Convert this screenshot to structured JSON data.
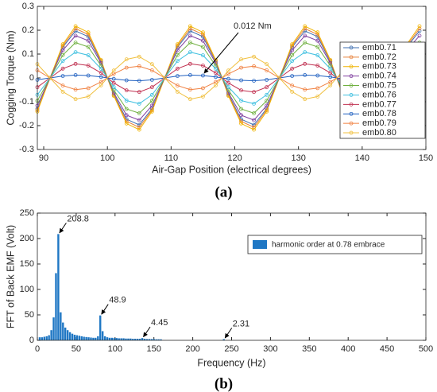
{
  "chart_data": [
    {
      "type": "line",
      "caption": "(a)",
      "xlabel": "Air-Gap Position (electrical degrees)",
      "ylabel": "Cogging Torque (Nm)",
      "annotation": "0.012 Nm",
      "xlim": [
        89,
        150
      ],
      "xticks": [
        90,
        100,
        110,
        120,
        130,
        140,
        150
      ],
      "ylim": [
        -0.3,
        0.3
      ],
      "yticks": [
        -0.3,
        -0.2,
        -0.1,
        0,
        0.1,
        0.2,
        0.3
      ],
      "x": [
        89,
        91,
        93,
        95,
        97,
        99,
        101,
        103,
        105,
        107,
        109,
        111,
        113,
        115,
        117,
        119,
        121,
        123,
        125,
        127,
        129,
        131,
        133,
        135,
        137,
        139,
        141,
        143,
        145,
        147,
        149
      ],
      "series": [
        {
          "name": "emb0.71",
          "color": "#3f6fb0",
          "values": [
            -0.129,
            0,
            0.129,
            0.197,
            0.173,
            0.068,
            -0.068,
            -0.173,
            -0.197,
            -0.129,
            0,
            0.129,
            0.197,
            0.173,
            0.068,
            -0.068,
            -0.173,
            -0.197,
            -0.129,
            0,
            0.129,
            0.197,
            0.173,
            0.068,
            -0.068,
            -0.173,
            -0.197,
            -0.129,
            0,
            0.129,
            0.197
          ]
        },
        {
          "name": "emb0.72",
          "color": "#e8803a",
          "values": [
            -0.135,
            0,
            0.135,
            0.207,
            0.182,
            0.072,
            -0.072,
            -0.182,
            -0.207,
            -0.135,
            0,
            0.135,
            0.207,
            0.182,
            0.072,
            -0.072,
            -0.182,
            -0.207,
            -0.135,
            0,
            0.135,
            0.207,
            0.182,
            0.072,
            -0.072,
            -0.182,
            -0.207,
            -0.135,
            0,
            0.135,
            0.207
          ]
        },
        {
          "name": "emb0.73",
          "color": "#f0b400",
          "values": [
            -0.141,
            0,
            0.141,
            0.217,
            0.191,
            0.075,
            -0.075,
            -0.191,
            -0.217,
            -0.141,
            0,
            0.141,
            0.217,
            0.191,
            0.075,
            -0.075,
            -0.191,
            -0.217,
            -0.141,
            0,
            0.141,
            0.217,
            0.191,
            0.075,
            -0.075,
            -0.191,
            -0.217,
            -0.141,
            0,
            0.141,
            0.217
          ]
        },
        {
          "name": "emb0.74",
          "color": "#8040a0",
          "values": [
            -0.116,
            0,
            0.116,
            0.177,
            0.156,
            0.062,
            -0.062,
            -0.156,
            -0.177,
            -0.116,
            0,
            0.116,
            0.177,
            0.156,
            0.062,
            -0.062,
            -0.156,
            -0.177,
            -0.116,
            0,
            0.116,
            0.177,
            0.156,
            0.062,
            -0.062,
            -0.156,
            -0.177,
            -0.116,
            0,
            0.116,
            0.177
          ]
        },
        {
          "name": "emb0.75",
          "color": "#70b040",
          "values": [
            -0.096,
            0,
            0.096,
            0.148,
            0.13,
            0.051,
            -0.051,
            -0.13,
            -0.148,
            -0.096,
            0,
            0.096,
            0.148,
            0.13,
            0.051,
            -0.051,
            -0.13,
            -0.148,
            -0.096,
            0,
            0.096,
            0.148,
            0.13,
            0.051,
            -0.051,
            -0.13,
            -0.148,
            -0.096,
            0,
            0.096,
            0.148
          ]
        },
        {
          "name": "emb0.76",
          "color": "#40c0e0",
          "values": [
            -0.071,
            0,
            0.071,
            0.108,
            0.095,
            0.038,
            -0.038,
            -0.095,
            -0.108,
            -0.071,
            0,
            0.071,
            0.108,
            0.095,
            0.038,
            -0.038,
            -0.095,
            -0.108,
            -0.071,
            0,
            0.071,
            0.108,
            0.095,
            0.038,
            -0.038,
            -0.095,
            -0.108,
            -0.071,
            0,
            0.071,
            0.108
          ]
        },
        {
          "name": "emb0.77",
          "color": "#c03050",
          "values": [
            -0.039,
            0,
            0.039,
            0.059,
            0.052,
            0.021,
            -0.021,
            -0.052,
            -0.059,
            -0.039,
            0,
            0.039,
            0.059,
            0.052,
            0.021,
            -0.021,
            -0.052,
            -0.059,
            -0.039,
            0,
            0.039,
            0.059,
            0.052,
            0.021,
            -0.021,
            -0.052,
            -0.059,
            -0.039,
            0,
            0.039,
            0.059
          ]
        },
        {
          "name": "emb0.78",
          "color": "#2060c0",
          "values": [
            -0.008,
            0,
            0.008,
            0.012,
            0.01,
            0.004,
            -0.004,
            -0.01,
            -0.012,
            -0.008,
            0,
            0.008,
            0.012,
            0.01,
            0.004,
            -0.004,
            -0.01,
            -0.012,
            -0.008,
            0,
            0.008,
            0.012,
            0.01,
            0.004,
            -0.004,
            -0.01,
            -0.012,
            -0.008,
            0,
            0.008,
            0.012
          ]
        },
        {
          "name": "emb0.79",
          "color": "#f08040",
          "values": [
            0.032,
            0,
            -0.032,
            -0.049,
            -0.043,
            -0.017,
            0.017,
            0.043,
            0.049,
            0.032,
            0,
            -0.032,
            -0.049,
            -0.043,
            -0.017,
            0.017,
            0.043,
            0.049,
            0.032,
            0,
            -0.032,
            -0.049,
            -0.043,
            -0.017,
            0.017,
            0.043,
            0.049,
            0.032,
            0,
            -0.032,
            -0.049
          ]
        },
        {
          "name": "emb0.80",
          "color": "#f0c040",
          "values": [
            0.058,
            0,
            -0.058,
            -0.089,
            -0.078,
            -0.031,
            0.031,
            0.078,
            0.089,
            0.058,
            0,
            -0.058,
            -0.089,
            -0.078,
            -0.031,
            0.031,
            0.078,
            0.089,
            0.058,
            0,
            -0.058,
            -0.089,
            -0.078,
            -0.031,
            0.031,
            0.078,
            0.089,
            0.058,
            0,
            -0.058,
            -0.089
          ]
        }
      ]
    },
    {
      "type": "bar",
      "caption": "(b)",
      "xlabel": "Frequency (Hz)",
      "ylabel": "FFT of Back EMF (Volt)",
      "xlim": [
        0,
        500
      ],
      "xticks": [
        0,
        50,
        100,
        150,
        200,
        250,
        300,
        350,
        400,
        450,
        500
      ],
      "ylim": [
        0,
        250
      ],
      "yticks": [
        0,
        50,
        100,
        150,
        200,
        250
      ],
      "x": [
        3,
        6,
        9,
        12,
        15,
        18,
        21,
        24,
        27,
        30,
        33,
        36,
        39,
        42,
        45,
        48,
        51,
        54,
        57,
        60,
        63,
        66,
        69,
        72,
        75,
        78,
        81,
        84,
        87,
        90,
        93,
        96,
        99,
        102,
        105,
        108,
        111,
        114,
        117,
        120,
        123,
        126,
        129,
        132,
        135,
        138,
        141,
        144,
        147,
        150,
        153,
        156,
        159,
        240
      ],
      "series": [
        {
          "name": "harmonic order at 0.78 embrace",
          "color": "#1f77c4",
          "values": [
            6,
            6,
            7,
            8,
            10,
            20,
            45,
            132,
            208.8,
            55,
            35,
            25,
            20,
            16,
            13,
            11,
            10,
            9,
            8,
            7,
            6.5,
            6,
            5.5,
            5,
            5,
            8,
            48.9,
            18,
            8,
            6,
            5,
            5,
            4.5,
            4.5,
            4,
            4,
            4,
            3.5,
            3.5,
            3.5,
            3,
            3,
            3,
            3,
            4.45,
            3,
            2.5,
            2.5,
            2.5,
            2.5,
            2,
            2,
            2,
            2.31
          ],
          "value_labels": [
            null,
            null,
            null,
            null,
            null,
            null,
            null,
            null,
            "208.8",
            null,
            null,
            null,
            null,
            null,
            null,
            null,
            null,
            null,
            null,
            null,
            null,
            null,
            null,
            null,
            null,
            null,
            "48.9",
            null,
            null,
            null,
            null,
            null,
            null,
            null,
            null,
            null,
            null,
            null,
            null,
            null,
            null,
            null,
            null,
            null,
            "4.45",
            null,
            null,
            null,
            null,
            null,
            null,
            null,
            null,
            "2.31"
          ]
        }
      ]
    }
  ]
}
